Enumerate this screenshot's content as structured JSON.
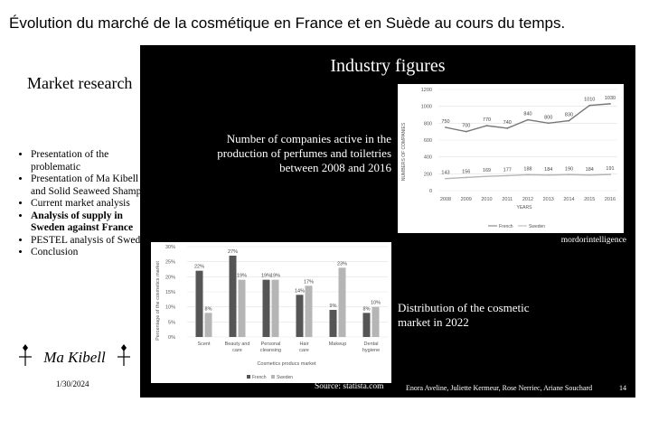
{
  "page_title": "Évolution du marché de la cosmétique en France et en Suède au cours du temps.",
  "sidebar": {
    "title": "Market research",
    "agenda": [
      {
        "label": "Presentation of the problematic",
        "active": false
      },
      {
        "label": "Presentation of Ma Kibell and Solid Seaweed Shampoo",
        "active": false
      },
      {
        "label": "Current market analysis",
        "active": false
      },
      {
        "label": "Analysis of supply in Sweden against France",
        "active": true
      },
      {
        "label": "PESTEL analysis of Sweden",
        "active": false
      },
      {
        "label": "Conclusion",
        "active": false
      }
    ],
    "logo_text": "Ma Kibell",
    "date": "1/30/2024"
  },
  "slide": {
    "title": "Industry figures",
    "caption1": "Number of companies active in the production of perfumes and toiletries between 2008 and 2016",
    "caption2": "Distribution of the cosmetic market in 2022",
    "credit1": "mordorintelligence",
    "credit2": "Source: statista.com",
    "authors": "Enora Aveline, Juliette Kermeur, Rose Nerriec, Ariane Souchard",
    "page_number": "14"
  },
  "colors": {
    "french": "#777777",
    "sweden": "#b5b5b5",
    "slide_bg": "#000000"
  },
  "chart_data": [
    {
      "type": "line",
      "title": "",
      "xlabel": "YEARS",
      "ylabel": "NUMBERS OF COMPANIES",
      "x": [
        "2008",
        "2009",
        "2010",
        "2011",
        "2012",
        "2013",
        "2014",
        "2015",
        "2016"
      ],
      "yticks": [
        0,
        200,
        400,
        600,
        800,
        1000,
        1200
      ],
      "ylim": [
        0,
        1200
      ],
      "grid": true,
      "legend": "bottom",
      "series": [
        {
          "name": "French",
          "values": [
            750,
            700,
            770,
            740,
            840,
            800,
            830,
            1010,
            1030
          ]
        },
        {
          "name": "Sweden",
          "values": [
            143,
            156,
            169,
            177,
            188,
            184,
            190,
            184,
            191
          ]
        }
      ]
    },
    {
      "type": "bar",
      "title": "",
      "xlabel": "Cosmetics producs market",
      "ylabel": "Percentage of the cosmetics market",
      "categories": [
        "Scent",
        "Beauty and care",
        "Personal cleansing",
        "Hair care",
        "Makeup",
        "Dental hygiene"
      ],
      "yticks": [
        "0%",
        "5%",
        "10%",
        "15%",
        "20%",
        "25%",
        "30%"
      ],
      "ylim": [
        0,
        30
      ],
      "grid": true,
      "legend": "bottom",
      "series": [
        {
          "name": "French",
          "values": [
            22,
            27,
            19,
            14,
            9,
            8
          ],
          "labels": [
            "22%",
            "27%",
            "19%",
            "14%",
            "9%",
            "8%"
          ]
        },
        {
          "name": "Sweden",
          "values": [
            8,
            19,
            19,
            17,
            23,
            10
          ],
          "labels": [
            "8%",
            "19%",
            "19%",
            "17%",
            "23%",
            "10%"
          ]
        }
      ]
    }
  ]
}
